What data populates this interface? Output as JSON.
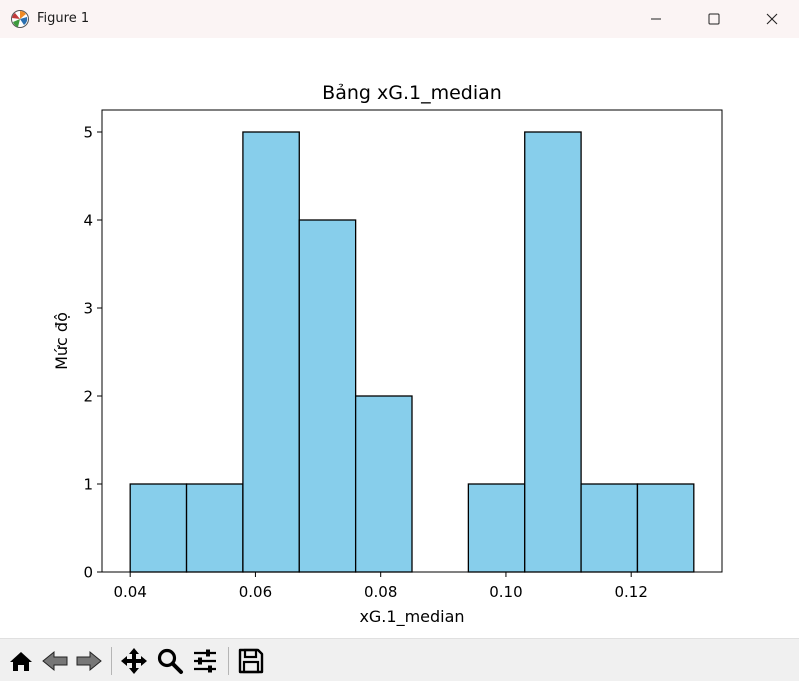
{
  "window": {
    "title": "Figure 1",
    "icon": "matplotlib-logo-icon",
    "controls": [
      "minimize-icon",
      "maximize-icon",
      "close-icon"
    ]
  },
  "toolbar": {
    "buttons": [
      "home-icon",
      "back-arrow-icon",
      "forward-arrow-icon",
      "pan-move-icon",
      "zoom-magnifier-icon",
      "configure-subplots-icon",
      "save-floppy-icon"
    ]
  },
  "chart_data": {
    "type": "bar",
    "subtype": "histogram",
    "title": "Bảng xG.1_median",
    "xlabel": "xG.1_median",
    "ylabel": "Mức độ",
    "bin_edges": [
      0.04,
      0.049,
      0.058,
      0.067,
      0.076,
      0.085,
      0.094,
      0.103,
      0.112,
      0.121,
      0.13
    ],
    "values": [
      1,
      1,
      5,
      4,
      2,
      0,
      1,
      5,
      1,
      1
    ],
    "xlim": [
      0.0355,
      0.1345
    ],
    "ylim": [
      0,
      5.25
    ],
    "xticks": [
      0.04,
      0.06,
      0.08,
      0.1,
      0.12
    ],
    "xtick_labels": [
      "0.04",
      "0.06",
      "0.08",
      "0.10",
      "0.12"
    ],
    "yticks": [
      0,
      1,
      2,
      3,
      4,
      5
    ],
    "ytick_labels": [
      "0",
      "1",
      "2",
      "3",
      "4",
      "5"
    ],
    "bar_color": "#87ceeb",
    "edge_color": "#000000",
    "grid": false,
    "legend": "none"
  }
}
